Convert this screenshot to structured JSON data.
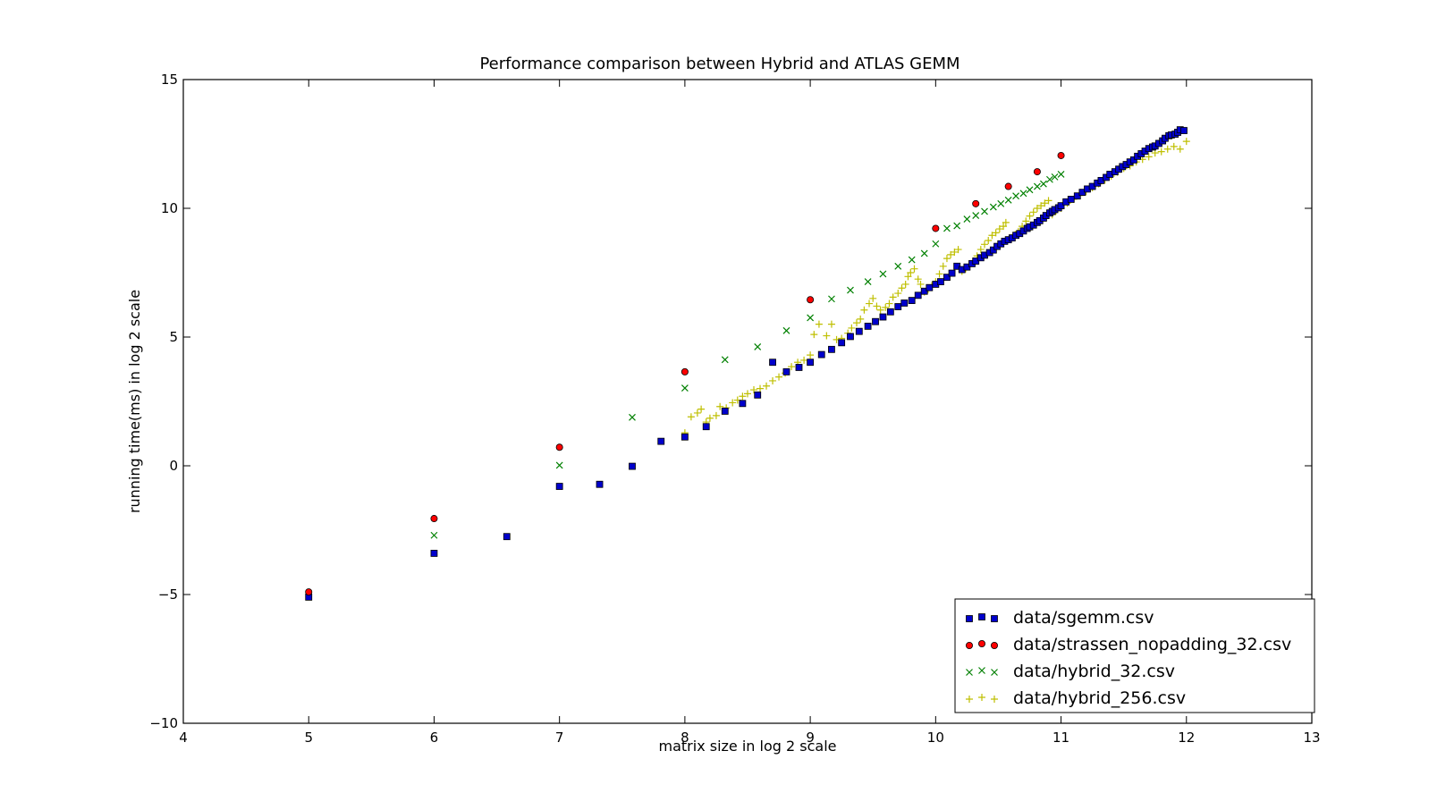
{
  "chart_data": {
    "type": "scatter",
    "title": "Performance comparison between Hybrid and ATLAS GEMM",
    "xlabel": "matrix size in log 2 scale",
    "ylabel": "running time(ms) in log 2 scale",
    "xlim": [
      4,
      13
    ],
    "ylim": [
      -10,
      15
    ],
    "xticks": [
      4,
      5,
      6,
      7,
      8,
      9,
      10,
      11,
      12,
      13
    ],
    "yticks": [
      -10,
      -5,
      0,
      5,
      10,
      15
    ],
    "xtick_labels": [
      "4",
      "5",
      "6",
      "7",
      "8",
      "9",
      "10",
      "11",
      "12",
      "13"
    ],
    "ytick_labels": [
      "−10",
      "−5",
      "0",
      "5",
      "10",
      "15"
    ],
    "grid": false,
    "legend_position": "lower-right",
    "series": [
      {
        "name": "data/sgemm.csv",
        "marker": "square",
        "color": "#0000cc",
        "points": [
          [
            5,
            -5.1
          ],
          [
            6,
            -3.4
          ],
          [
            6.58,
            -2.75
          ],
          [
            7,
            -0.8
          ],
          [
            7.32,
            -0.72
          ],
          [
            7.58,
            -0.02
          ],
          [
            7.81,
            0.95
          ],
          [
            8,
            1.12
          ],
          [
            8.17,
            1.52
          ],
          [
            8.32,
            2.12
          ],
          [
            8.46,
            2.42
          ],
          [
            8.58,
            2.75
          ],
          [
            8.7,
            4.02
          ],
          [
            8.81,
            3.65
          ],
          [
            8.91,
            3.82
          ],
          [
            9,
            4.02
          ],
          [
            9.09,
            4.32
          ],
          [
            9.17,
            4.52
          ],
          [
            9.25,
            4.78
          ],
          [
            9.32,
            5.02
          ],
          [
            9.39,
            5.22
          ],
          [
            9.46,
            5.42
          ],
          [
            9.52,
            5.6
          ],
          [
            9.58,
            5.78
          ],
          [
            9.64,
            5.98
          ],
          [
            9.7,
            6.18
          ],
          [
            9.75,
            6.32
          ],
          [
            9.81,
            6.42
          ],
          [
            9.86,
            6.62
          ],
          [
            9.91,
            6.78
          ],
          [
            9.95,
            6.92
          ],
          [
            10,
            7.05
          ],
          [
            10.04,
            7.15
          ],
          [
            10.09,
            7.32
          ],
          [
            10.13,
            7.48
          ],
          [
            10.17,
            7.75
          ],
          [
            10.21,
            7.62
          ],
          [
            10.25,
            7.72
          ],
          [
            10.29,
            7.85
          ],
          [
            10.32,
            7.95
          ],
          [
            10.36,
            8.08
          ],
          [
            10.39,
            8.18
          ],
          [
            10.43,
            8.28
          ],
          [
            10.46,
            8.38
          ],
          [
            10.49,
            8.52
          ],
          [
            10.52,
            8.62
          ],
          [
            10.55,
            8.72
          ],
          [
            10.58,
            8.78
          ],
          [
            10.61,
            8.85
          ],
          [
            10.64,
            8.95
          ],
          [
            10.67,
            9.02
          ],
          [
            10.7,
            9.12
          ],
          [
            10.73,
            9.22
          ],
          [
            10.75,
            9.28
          ],
          [
            10.78,
            9.35
          ],
          [
            10.81,
            9.45
          ],
          [
            10.83,
            9.52
          ],
          [
            10.86,
            9.62
          ],
          [
            10.88,
            9.72
          ],
          [
            10.91,
            9.82
          ],
          [
            10.93,
            9.88
          ],
          [
            10.95,
            9.95
          ],
          [
            10.98,
            10.02
          ],
          [
            11,
            10.1
          ],
          [
            11.04,
            10.25
          ],
          [
            11.08,
            10.35
          ],
          [
            11.13,
            10.48
          ],
          [
            11.17,
            10.62
          ],
          [
            11.21,
            10.75
          ],
          [
            11.25,
            10.85
          ],
          [
            11.29,
            10.98
          ],
          [
            11.32,
            11.08
          ],
          [
            11.36,
            11.2
          ],
          [
            11.39,
            11.32
          ],
          [
            11.43,
            11.42
          ],
          [
            11.46,
            11.52
          ],
          [
            11.49,
            11.62
          ],
          [
            11.52,
            11.7
          ],
          [
            11.55,
            11.8
          ],
          [
            11.58,
            11.88
          ],
          [
            11.61,
            12.02
          ],
          [
            11.64,
            12.12
          ],
          [
            11.67,
            12.22
          ],
          [
            11.7,
            12.32
          ],
          [
            11.73,
            12.38
          ],
          [
            11.75,
            12.42
          ],
          [
            11.78,
            12.52
          ],
          [
            11.81,
            12.62
          ],
          [
            11.83,
            12.72
          ],
          [
            11.86,
            12.82
          ],
          [
            11.88,
            12.85
          ],
          [
            11.91,
            12.88
          ],
          [
            11.93,
            12.95
          ],
          [
            11.95,
            13.05
          ],
          [
            11.98,
            13.02
          ]
        ]
      },
      {
        "name": "data/strassen_nopadding_32.csv",
        "marker": "circle",
        "color": "#ff0000",
        "points": [
          [
            5,
            -4.9
          ],
          [
            6,
            -2.05
          ],
          [
            7,
            0.72
          ],
          [
            8,
            3.65
          ],
          [
            9,
            6.45
          ],
          [
            10,
            9.22
          ],
          [
            10.32,
            10.18
          ],
          [
            10.58,
            10.85
          ],
          [
            10.81,
            11.42
          ],
          [
            11,
            12.05
          ]
        ]
      },
      {
        "name": "data/hybrid_32.csv",
        "marker": "x",
        "color": "#008000",
        "points": [
          [
            6,
            -2.7
          ],
          [
            7,
            0.02
          ],
          [
            7.58,
            1.88
          ],
          [
            8,
            3.02
          ],
          [
            8.32,
            4.12
          ],
          [
            8.58,
            4.62
          ],
          [
            8.81,
            5.25
          ],
          [
            9,
            5.75
          ],
          [
            9.17,
            6.48
          ],
          [
            9.32,
            6.82
          ],
          [
            9.46,
            7.15
          ],
          [
            9.58,
            7.45
          ],
          [
            9.7,
            7.75
          ],
          [
            9.81,
            8.0
          ],
          [
            9.91,
            8.25
          ],
          [
            10,
            8.62
          ],
          [
            10.09,
            9.22
          ],
          [
            10.17,
            9.32
          ],
          [
            10.25,
            9.58
          ],
          [
            10.32,
            9.72
          ],
          [
            10.39,
            9.88
          ],
          [
            10.46,
            10.05
          ],
          [
            10.52,
            10.18
          ],
          [
            10.58,
            10.32
          ],
          [
            10.64,
            10.48
          ],
          [
            10.7,
            10.58
          ],
          [
            10.75,
            10.72
          ],
          [
            10.81,
            10.85
          ],
          [
            10.86,
            10.95
          ],
          [
            10.91,
            11.12
          ],
          [
            10.95,
            11.22
          ],
          [
            11,
            11.32
          ]
        ]
      },
      {
        "name": "data/hybrid_256.csv",
        "marker": "plus",
        "color": "#bfbf00",
        "points": [
          [
            8,
            1.28
          ],
          [
            8.05,
            1.9
          ],
          [
            8.1,
            2.05
          ],
          [
            8.13,
            2.2
          ],
          [
            8.17,
            1.7
          ],
          [
            8.2,
            1.85
          ],
          [
            8.25,
            1.95
          ],
          [
            8.28,
            2.3
          ],
          [
            8.33,
            2.25
          ],
          [
            8.38,
            2.45
          ],
          [
            8.42,
            2.55
          ],
          [
            8.46,
            2.7
          ],
          [
            8.5,
            2.8
          ],
          [
            8.55,
            2.95
          ],
          [
            8.6,
            3.0
          ],
          [
            8.65,
            3.1
          ],
          [
            8.7,
            3.3
          ],
          [
            8.75,
            3.45
          ],
          [
            8.8,
            3.6
          ],
          [
            8.85,
            3.85
          ],
          [
            8.9,
            4.02
          ],
          [
            8.95,
            4.1
          ],
          [
            9.0,
            4.3
          ],
          [
            9.03,
            5.1
          ],
          [
            9.07,
            5.5
          ],
          [
            9.13,
            5.05
          ],
          [
            9.17,
            5.5
          ],
          [
            9.21,
            4.9
          ],
          [
            9.25,
            4.95
          ],
          [
            9.3,
            5.15
          ],
          [
            9.33,
            5.35
          ],
          [
            9.37,
            5.55
          ],
          [
            9.4,
            5.7
          ],
          [
            9.43,
            6.05
          ],
          [
            9.47,
            6.3
          ],
          [
            9.5,
            6.5
          ],
          [
            9.53,
            6.2
          ],
          [
            9.56,
            6.05
          ],
          [
            9.6,
            6.15
          ],
          [
            9.63,
            6.3
          ],
          [
            9.66,
            6.55
          ],
          [
            9.7,
            6.7
          ],
          [
            9.73,
            6.9
          ],
          [
            9.76,
            7.05
          ],
          [
            9.78,
            7.35
          ],
          [
            9.8,
            7.5
          ],
          [
            9.83,
            7.65
          ],
          [
            9.86,
            7.25
          ],
          [
            9.88,
            7.05
          ],
          [
            9.91,
            6.75
          ],
          [
            9.94,
            6.85
          ],
          [
            9.97,
            7.0
          ],
          [
            10.0,
            7.15
          ],
          [
            10.03,
            7.45
          ],
          [
            10.06,
            7.75
          ],
          [
            10.09,
            8.05
          ],
          [
            10.12,
            8.2
          ],
          [
            10.15,
            8.3
          ],
          [
            10.18,
            8.4
          ],
          [
            10.21,
            7.55
          ],
          [
            10.24,
            7.65
          ],
          [
            10.27,
            7.8
          ],
          [
            10.3,
            7.95
          ],
          [
            10.33,
            8.15
          ],
          [
            10.36,
            8.4
          ],
          [
            10.39,
            8.6
          ],
          [
            10.42,
            8.75
          ],
          [
            10.45,
            8.95
          ],
          [
            10.48,
            9.05
          ],
          [
            10.51,
            9.2
          ],
          [
            10.54,
            9.3
          ],
          [
            10.56,
            9.45
          ],
          [
            10.6,
            8.85
          ],
          [
            10.63,
            8.95
          ],
          [
            10.66,
            9.1
          ],
          [
            10.69,
            9.3
          ],
          [
            10.72,
            9.5
          ],
          [
            10.75,
            9.7
          ],
          [
            10.78,
            9.85
          ],
          [
            10.81,
            10.0
          ],
          [
            10.84,
            10.1
          ],
          [
            10.87,
            10.2
          ],
          [
            10.9,
            10.3
          ],
          [
            10.93,
            9.75
          ],
          [
            10.96,
            9.9
          ],
          [
            11.0,
            10.0
          ],
          [
            11.05,
            10.2
          ],
          [
            11.1,
            10.35
          ],
          [
            11.15,
            10.5
          ],
          [
            11.2,
            10.65
          ],
          [
            11.25,
            10.8
          ],
          [
            11.3,
            10.95
          ],
          [
            11.35,
            11.1
          ],
          [
            11.4,
            11.25
          ],
          [
            11.45,
            11.4
          ],
          [
            11.5,
            11.55
          ],
          [
            11.55,
            11.65
          ],
          [
            11.6,
            11.8
          ],
          [
            11.65,
            11.9
          ],
          [
            11.7,
            12.0
          ],
          [
            11.75,
            12.15
          ],
          [
            11.8,
            12.2
          ],
          [
            11.85,
            12.3
          ],
          [
            11.9,
            12.4
          ],
          [
            11.95,
            12.3
          ],
          [
            12.0,
            12.6
          ]
        ]
      }
    ]
  }
}
